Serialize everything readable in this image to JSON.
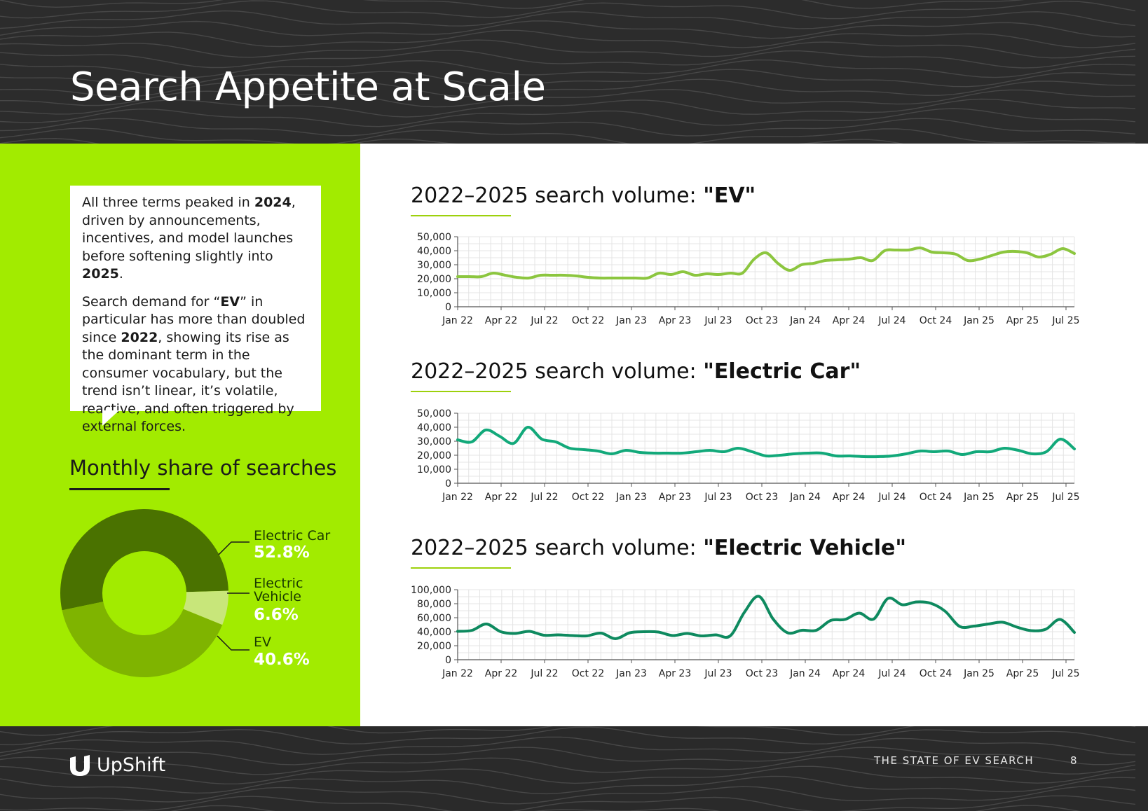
{
  "page": {
    "title": "Search Appetite at Scale",
    "footer_text": "THE STATE OF EV SEARCH",
    "page_number": "8",
    "brand": "UpShift"
  },
  "callout": {
    "p1": [
      "All three terms peaked in ",
      "2024",
      ", driven by announcements, incentives, and model launches before softening slightly into ",
      "2025",
      "."
    ],
    "p2": [
      "Search demand for “",
      "EV",
      "” in particular has more than doubled since ",
      "2022",
      ", showing its rise as the dominant term in the consumer vocabulary, but the trend isn’t linear, it’s volatile, reactive, and often triggered by external forces."
    ]
  },
  "colors": {
    "ev_line": "#8cc63f",
    "electric_car_line": "#12a97a",
    "electric_vehicle_line": "#0e8a5f",
    "panel_green": "#a2eb00",
    "donut_dark": "#4a7200",
    "donut_mid": "#7fb400",
    "donut_light": "#c8e67a"
  },
  "chart_data": [
    {
      "type": "pie",
      "title": "Monthly share of searches",
      "categories": [
        "Electric Car",
        "Electric Vehicle",
        "EV"
      ],
      "values": [
        52.8,
        6.6,
        40.6
      ],
      "labels": [
        "52.8%",
        "6.6%",
        "40.6%"
      ]
    },
    {
      "type": "line",
      "title_prefix": "2022–2025 search volume: ",
      "title_term": "\"EV\"",
      "x_ticks": [
        "Jan 22",
        "Apr 22",
        "Jul 22",
        "Oct 22",
        "Jan 23",
        "Apr 23",
        "Jul 23",
        "Oct 23",
        "Jan 24",
        "Apr 24",
        "Jul 24",
        "Oct 24",
        "Jan 25",
        "Apr 25",
        "Jul 25"
      ],
      "y_ticks": [
        "0",
        "10,000",
        "20,000",
        "30,000",
        "40,000",
        "50,000"
      ],
      "ylim": [
        0,
        50000
      ],
      "x_start": "Jan 22",
      "x_end": "Aug 25",
      "values": [
        21500,
        21500,
        21500,
        24000,
        22500,
        21000,
        20500,
        22500,
        22500,
        22500,
        22000,
        21000,
        20500,
        20500,
        20500,
        20500,
        20500,
        24000,
        23000,
        25000,
        22500,
        23500,
        23000,
        24000,
        24000,
        34000,
        38500,
        31000,
        26000,
        30000,
        31000,
        33000,
        33500,
        34000,
        35000,
        33000,
        40000,
        40500,
        40500,
        42000,
        39000,
        38500,
        37500,
        33000,
        34000,
        36500,
        39000,
        39500,
        38500,
        35500,
        37500,
        41500,
        38000
      ]
    },
    {
      "type": "line",
      "title_prefix": "2022–2025 search volume: ",
      "title_term": "\"Electric Car\"",
      "x_ticks": [
        "Jan 22",
        "Apr 22",
        "Jul 22",
        "Oct 22",
        "Jan 23",
        "Apr 23",
        "Jul 23",
        "Oct 23",
        "Jan 24",
        "Apr 24",
        "Jul 24",
        "Oct 24",
        "Jan 25",
        "Apr 25",
        "Jul 25"
      ],
      "y_ticks": [
        "0",
        "10,000",
        "20,000",
        "30,000",
        "40,000",
        "50,000"
      ],
      "ylim": [
        0,
        50000
      ],
      "x_start": "Jan 22",
      "x_end": "Aug 25",
      "values": [
        31000,
        29500,
        38000,
        33500,
        28500,
        40000,
        31500,
        29500,
        25000,
        24000,
        23000,
        21000,
        23500,
        22000,
        21500,
        21500,
        21500,
        22500,
        23500,
        22500,
        25000,
        22500,
        19500,
        20000,
        21000,
        21500,
        21500,
        19500,
        19500,
        19000,
        19000,
        19500,
        21000,
        23000,
        22500,
        23000,
        20500,
        22500,
        22500,
        25000,
        23500,
        21000,
        22500,
        31500,
        24500
      ]
    },
    {
      "type": "line",
      "title_prefix": "2022–2025 search volume: ",
      "title_term": "\"Electric Vehicle\"",
      "x_ticks": [
        "Jan 22",
        "Apr 22",
        "Jul 22",
        "Oct 22",
        "Jan 23",
        "Apr 23",
        "Jul 23",
        "Oct 23",
        "Jan 24",
        "Apr 24",
        "Jul 24",
        "Oct 24",
        "Jan 25",
        "Apr 25",
        "Jul 25"
      ],
      "y_ticks": [
        "0",
        "20,000",
        "40,000",
        "60,000",
        "80,000",
        "100,000"
      ],
      "ylim": [
        0,
        100000
      ],
      "x_start": "Jan 22",
      "x_end": "Aug 25",
      "values": [
        40500,
        42000,
        51000,
        40000,
        37500,
        40500,
        35000,
        35500,
        34500,
        34000,
        38000,
        30000,
        38500,
        40000,
        39500,
        34500,
        37500,
        34000,
        35500,
        34000,
        68000,
        90500,
        58000,
        38500,
        42000,
        42000,
        56000,
        57500,
        66500,
        58000,
        87500,
        78500,
        82500,
        80500,
        69000,
        47500,
        48000,
        51000,
        53500,
        46500,
        41500,
        43500,
        57500,
        39000
      ]
    }
  ]
}
